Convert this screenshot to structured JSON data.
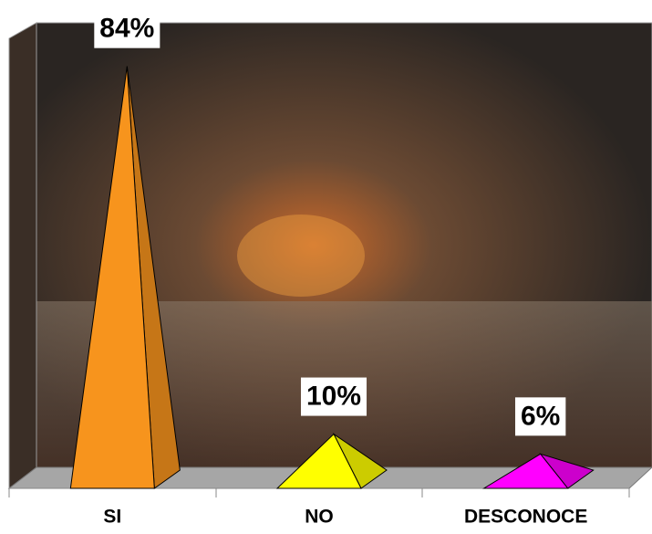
{
  "chart_data": {
    "type": "pyramid",
    "categories": [
      "SI",
      "NO",
      "DESCONOCE"
    ],
    "values": [
      84,
      10,
      6
    ],
    "value_labels": [
      "84%",
      "10%",
      "6%"
    ],
    "colors": [
      "#f7941d",
      "#ffff00",
      "#ff00ff"
    ],
    "ylim": [
      0,
      90
    ]
  }
}
